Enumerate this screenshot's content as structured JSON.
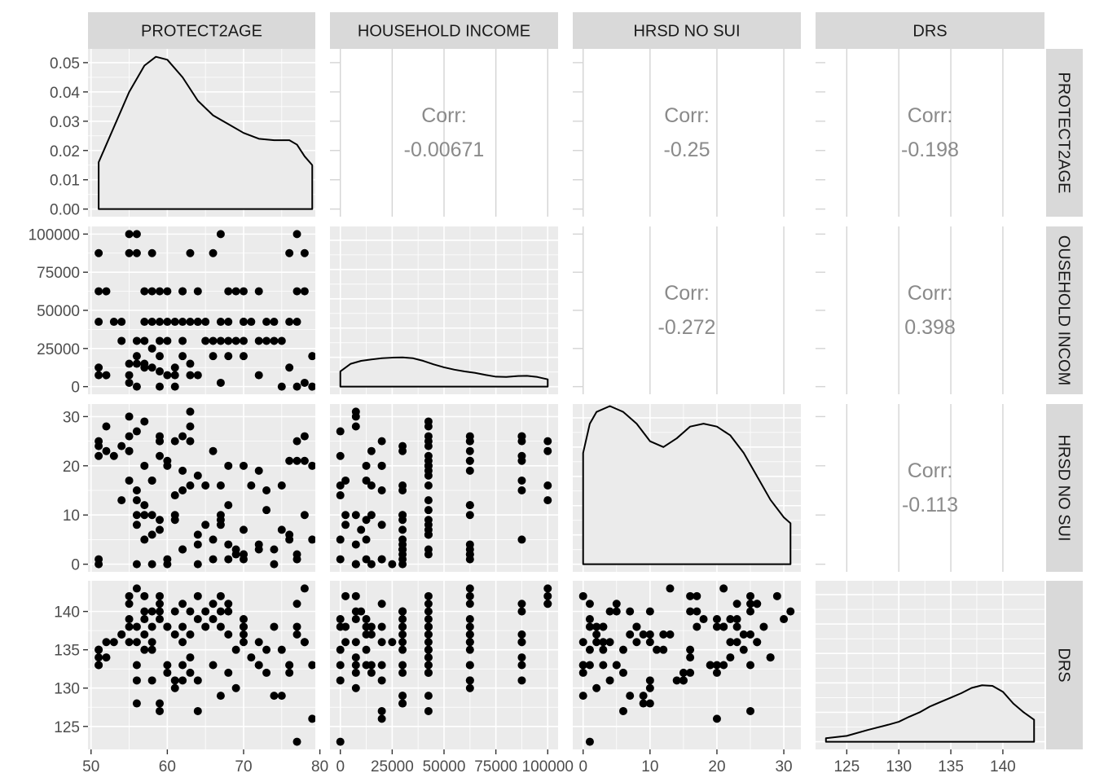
{
  "colors": {
    "panel_bg": "#ebebeb",
    "grid_major": "#ffffff",
    "strip_bg": "#d9d9d9",
    "point": "#000000",
    "corr_text": "#8a8a8a",
    "blank_grid": "#d4d4d4"
  },
  "chart_data": {
    "type": "scatter",
    "layout": "pairs-matrix",
    "variables": [
      {
        "name": "PROTECT2AGE",
        "ticks": [
          50,
          60,
          70,
          80
        ],
        "tick_labels": [
          "50",
          "60",
          "70",
          "80"
        ],
        "range": [
          49.6,
          79.4
        ],
        "vgrid_minor": true
      },
      {
        "name": "HOUSEHOLD INCOME",
        "row_label": "OUSEHOLD INCOM",
        "ticks": [
          0,
          25000,
          50000,
          75000,
          100000
        ],
        "tick_labels": [
          "0",
          "25000",
          "50000",
          "75000",
          "100000"
        ],
        "range": [
          -5000,
          105000
        ],
        "vgrid_minor": true
      },
      {
        "name": "HRSD NO SUI",
        "ticks": [
          0,
          10,
          20,
          30
        ],
        "tick_labels": [
          "0",
          "10",
          "20",
          "30"
        ],
        "range": [
          -1.55,
          32.55
        ],
        "vgrid_minor": true
      },
      {
        "name": "DRS",
        "ticks": [
          125,
          130,
          135,
          140
        ],
        "tick_labels": [
          "125",
          "130",
          "135",
          "140"
        ],
        "range": [
          122,
          144
        ],
        "vgrid_minor": true
      }
    ],
    "density": {
      "y_ticks": [
        0,
        0.01,
        0.02,
        0.03,
        0.04,
        0.05
      ],
      "y_tick_labels": [
        "0.00",
        "0.01",
        "0.02",
        "0.03",
        "0.04",
        "0.05"
      ],
      "y_range": [
        -0.0026,
        0.0547
      ],
      "curves": [
        [
          [
            51,
            0.016
          ],
          [
            53,
            0.028
          ],
          [
            55,
            0.04
          ],
          [
            57,
            0.049
          ],
          [
            58.5,
            0.052
          ],
          [
            60,
            0.051
          ],
          [
            62,
            0.045
          ],
          [
            64,
            0.037
          ],
          [
            66,
            0.032
          ],
          [
            68,
            0.029
          ],
          [
            70,
            0.026
          ],
          [
            72,
            0.024
          ],
          [
            74,
            0.0235
          ],
          [
            76,
            0.0235
          ],
          [
            77,
            0.022
          ],
          [
            78,
            0.018
          ],
          [
            79,
            0.015
          ]
        ],
        [
          [
            0,
            0.0052
          ],
          [
            5000,
            0.0078
          ],
          [
            10000,
            0.0088
          ],
          [
            15000,
            0.0093
          ],
          [
            20000,
            0.0097
          ],
          [
            25000,
            0.0099
          ],
          [
            30000,
            0.01
          ],
          [
            35000,
            0.0097
          ],
          [
            40000,
            0.0088
          ],
          [
            45000,
            0.0076
          ],
          [
            50000,
            0.0066
          ],
          [
            55000,
            0.0058
          ],
          [
            60000,
            0.0052
          ],
          [
            65000,
            0.0047
          ],
          [
            70000,
            0.004
          ],
          [
            75000,
            0.0034
          ],
          [
            80000,
            0.0033
          ],
          [
            85000,
            0.0036
          ],
          [
            90000,
            0.0037
          ],
          [
            95000,
            0.0033
          ],
          [
            100000,
            0.0025
          ]
        ],
        [
          [
            0,
            0.038
          ],
          [
            1,
            0.048
          ],
          [
            2,
            0.052
          ],
          [
            4,
            0.054
          ],
          [
            6,
            0.052
          ],
          [
            8,
            0.048
          ],
          [
            10,
            0.042
          ],
          [
            12,
            0.04
          ],
          [
            14,
            0.043
          ],
          [
            16,
            0.047
          ],
          [
            18,
            0.048
          ],
          [
            20,
            0.047
          ],
          [
            22,
            0.044
          ],
          [
            24,
            0.038
          ],
          [
            26,
            0.03
          ],
          [
            28,
            0.022
          ],
          [
            30,
            0.016
          ],
          [
            31,
            0.014
          ]
        ],
        [
          [
            123,
            0.0012
          ],
          [
            125,
            0.002
          ],
          [
            127,
            0.004
          ],
          [
            129,
            0.0058
          ],
          [
            130,
            0.0068
          ],
          [
            131,
            0.0085
          ],
          [
            132,
            0.01
          ],
          [
            133,
            0.012
          ],
          [
            134,
            0.0135
          ],
          [
            135,
            0.015
          ],
          [
            136,
            0.0165
          ],
          [
            137,
            0.0183
          ],
          [
            138,
            0.0192
          ],
          [
            139,
            0.019
          ],
          [
            140,
            0.017
          ],
          [
            141,
            0.013
          ],
          [
            142,
            0.01
          ],
          [
            143,
            0.0075
          ]
        ]
      ]
    },
    "correlations": [
      {
        "row": 0,
        "col": 1,
        "label": "Corr:",
        "value": "-0.00671"
      },
      {
        "row": 0,
        "col": 2,
        "label": "Corr:",
        "value": "-0.25"
      },
      {
        "row": 0,
        "col": 3,
        "label": "Corr:",
        "value": "-0.198"
      },
      {
        "row": 1,
        "col": 2,
        "label": "Corr:",
        "value": "-0.272"
      },
      {
        "row": 1,
        "col": 3,
        "label": "Corr:",
        "value": "0.398"
      },
      {
        "row": 2,
        "col": 3,
        "label": "Corr:",
        "value": "-0.113"
      }
    ],
    "observations": [
      [
        51,
        87500,
        22,
        134
      ],
      [
        51,
        62500,
        25,
        133
      ],
      [
        51,
        42500,
        24,
        135
      ],
      [
        51,
        12500,
        1,
        135
      ],
      [
        51,
        7500,
        0,
        133
      ],
      [
        52,
        62500,
        23,
        136
      ],
      [
        52,
        7500,
        28,
        134
      ],
      [
        53,
        42500,
        22,
        136
      ],
      [
        54,
        30000,
        24,
        137
      ],
      [
        55,
        100000,
        23,
        141
      ],
      [
        55,
        87500,
        26,
        136
      ],
      [
        55,
        15000,
        23,
        138
      ],
      [
        55,
        7500,
        30,
        139
      ],
      [
        55,
        2500,
        17,
        142
      ],
      [
        56,
        100000,
        13,
        143
      ],
      [
        56,
        87500,
        15,
        131
      ],
      [
        56,
        30000,
        10,
        128
      ],
      [
        56,
        20000,
        8,
        136
      ],
      [
        56,
        15000,
        0,
        133
      ],
      [
        56,
        0,
        27,
        138
      ],
      [
        57,
        42500,
        29,
        142
      ],
      [
        57,
        30000,
        5,
        140
      ],
      [
        57,
        15000,
        10,
        137
      ],
      [
        57,
        12500,
        20,
        139
      ],
      [
        58,
        87500,
        17,
        140
      ],
      [
        58,
        62500,
        10,
        131
      ],
      [
        58,
        42500,
        6,
        135
      ],
      [
        58,
        25000,
        0,
        136
      ],
      [
        58,
        12500,
        17,
        138
      ],
      [
        59,
        62500,
        25,
        142
      ],
      [
        59,
        42500,
        26,
        141
      ],
      [
        59,
        30000,
        9,
        128
      ],
      [
        59,
        20000,
        25,
        127
      ],
      [
        59,
        10000,
        7,
        140
      ],
      [
        59,
        0,
        22,
        139
      ],
      [
        60,
        62500,
        21,
        138
      ],
      [
        60,
        42500,
        20,
        133
      ],
      [
        60,
        30000,
        1,
        138
      ],
      [
        60,
        7500,
        0,
        132
      ],
      [
        61,
        42500,
        25,
        140
      ],
      [
        61,
        12500,
        9,
        137
      ],
      [
        61,
        7500,
        10,
        130
      ],
      [
        62,
        62500,
        26,
        141
      ],
      [
        62,
        42500,
        19,
        133
      ],
      [
        62,
        30000,
        3,
        138
      ],
      [
        62,
        20000,
        15,
        131
      ],
      [
        63,
        87500,
        25,
        137
      ],
      [
        63,
        42500,
        28,
        134
      ],
      [
        63,
        15000,
        16,
        132
      ],
      [
        63,
        7500,
        31,
        140
      ],
      [
        64,
        62500,
        4,
        131
      ],
      [
        64,
        42500,
        6,
        127
      ],
      [
        64,
        7500,
        0,
        142
      ],
      [
        65,
        30000,
        16,
        140
      ],
      [
        66,
        87500,
        5,
        141
      ],
      [
        66,
        30000,
        23,
        139
      ],
      [
        66,
        20000,
        1,
        133
      ],
      [
        67,
        100000,
        16,
        142
      ],
      [
        67,
        30000,
        10,
        140
      ],
      [
        67,
        2500,
        8,
        138
      ],
      [
        67,
        42500,
        9,
        129
      ],
      [
        68,
        42500,
        20,
        132
      ],
      [
        68,
        30000,
        4,
        140
      ],
      [
        68,
        20000,
        1,
        141
      ],
      [
        69,
        62500,
        2,
        130
      ],
      [
        69,
        30000,
        3,
        135
      ],
      [
        70,
        62500,
        1,
        139
      ],
      [
        70,
        42500,
        2,
        138
      ],
      [
        70,
        20000,
        20,
        138
      ],
      [
        70,
        30000,
        2,
        136
      ],
      [
        71,
        42500,
        16,
        134
      ],
      [
        72,
        62500,
        19,
        133
      ],
      [
        72,
        30000,
        3,
        133
      ],
      [
        72,
        7500,
        4,
        136
      ],
      [
        73,
        30000,
        15,
        132
      ],
      [
        74,
        42500,
        3,
        138
      ],
      [
        74,
        30000,
        0,
        129
      ],
      [
        75,
        0,
        16,
        135
      ],
      [
        75,
        30000,
        7,
        129
      ],
      [
        76,
        87500,
        21,
        133
      ],
      [
        76,
        42500,
        6,
        132
      ],
      [
        76,
        12500,
        5,
        133
      ],
      [
        77,
        100000,
        25,
        141
      ],
      [
        77,
        42500,
        21,
        138
      ],
      [
        77,
        62500,
        2,
        137
      ],
      [
        77,
        0,
        1,
        123
      ],
      [
        78,
        62500,
        21,
        143
      ],
      [
        78,
        87500,
        26,
        136
      ],
      [
        78,
        2500,
        10,
        136
      ],
      [
        79,
        20000,
        20,
        126
      ],
      [
        79,
        0,
        5,
        133
      ],
      [
        62,
        62500,
        3,
        136
      ],
      [
        65,
        42500,
        8,
        138
      ],
      [
        68,
        62500,
        12,
        137
      ],
      [
        73,
        42500,
        11,
        135
      ],
      [
        54,
        42500,
        13,
        137
      ],
      [
        61,
        0,
        14,
        131
      ],
      [
        64,
        42500,
        18,
        139
      ],
      [
        70,
        42500,
        7,
        137
      ],
      [
        57,
        62500,
        12,
        135
      ]
    ]
  }
}
